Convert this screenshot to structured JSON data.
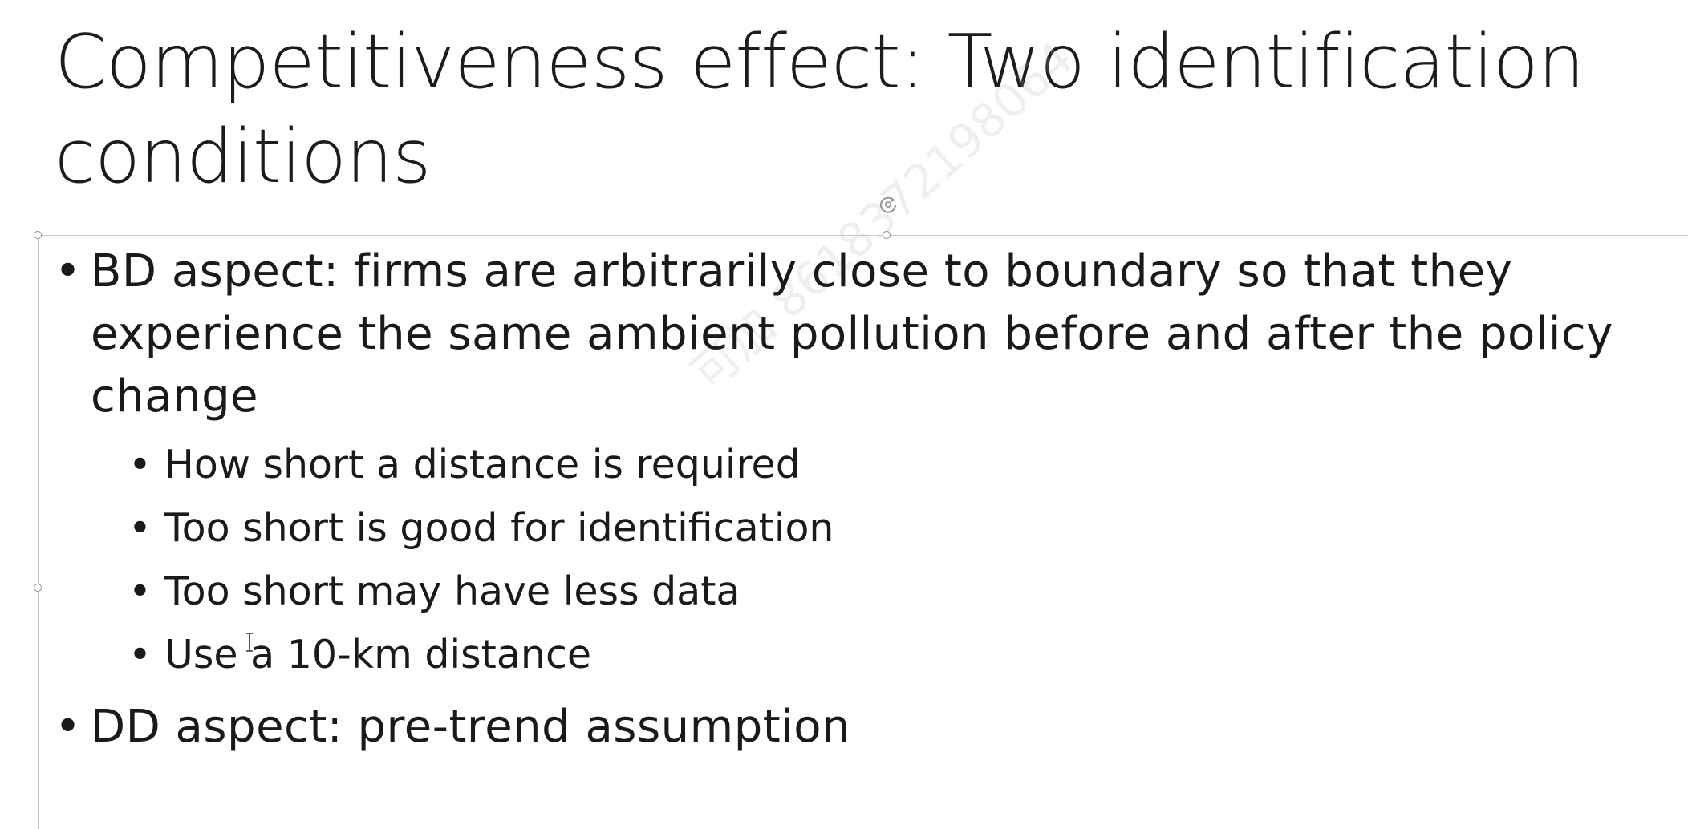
{
  "slide": {
    "title": "Competitiveness effect: Two identification conditions",
    "watermark": "可加 8618372198064",
    "bullets": [
      {
        "text": "BD aspect: firms are arbitrarily close to boundary so that they experience the same ambient pollution before and after the policy change",
        "sub": [
          "How short a distance is required",
          "Too short is good for identification",
          "Too short may have less data",
          "Use a 10-km distance"
        ]
      },
      {
        "text": "DD aspect: pre-trend assumption",
        "sub": []
      }
    ],
    "bullet_glyph": "•"
  },
  "colors": {
    "text": "#1a1a1a",
    "frame": "#c8c8c8",
    "handle": "#8e8e8e",
    "background": "#ffffff"
  },
  "icons": {
    "rotate_handle": "rotate-handle-icon",
    "cursor": "text-cursor-icon"
  }
}
